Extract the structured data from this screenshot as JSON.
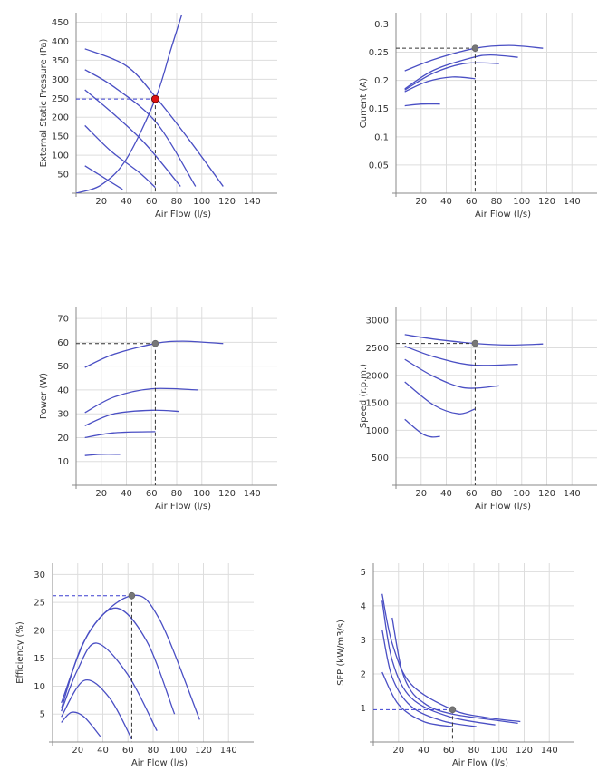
{
  "colors": {
    "curve": "#4a4fc4",
    "system_curve": "#4a4fc4",
    "guide_dark": "#333333",
    "guide_blue": "#3a3fd0",
    "op_point_red": "#dd1111",
    "op_point_grey": "#777777",
    "grid": "#dddddd"
  },
  "chart_data": [
    {
      "id": "pressure",
      "type": "line",
      "xlabel": "Air Flow (l/s)",
      "ylabel": "External Static Pressure (Pa)",
      "xlim": [
        0,
        160
      ],
      "ylim": [
        0,
        475
      ],
      "xticks": [
        20,
        40,
        60,
        80,
        100,
        120,
        140
      ],
      "yticks": [
        50,
        100,
        150,
        200,
        250,
        300,
        350,
        400,
        450
      ],
      "series": [
        {
          "points": [
            [
              7,
              380
            ],
            [
              40,
              335
            ],
            [
              64,
              250
            ],
            [
              90,
              140
            ],
            [
              117,
              18
            ]
          ]
        },
        {
          "points": [
            [
              7,
              325
            ],
            [
              30,
              280
            ],
            [
              64,
              185
            ],
            [
              95,
              18
            ]
          ]
        },
        {
          "points": [
            [
              7,
              272
            ],
            [
              30,
              208
            ],
            [
              55,
              130
            ],
            [
              83,
              18
            ]
          ]
        },
        {
          "points": [
            [
              7,
              178
            ],
            [
              28,
              110
            ],
            [
              50,
              55
            ],
            [
              63,
              15
            ]
          ]
        },
        {
          "points": [
            [
              7,
              72
            ],
            [
              20,
              45
            ],
            [
              37,
              10
            ]
          ]
        }
      ],
      "system_curve": {
        "points": [
          [
            0,
            0
          ],
          [
            20,
            22
          ],
          [
            40,
            90
          ],
          [
            63,
            248
          ],
          [
            75,
            375
          ],
          [
            84,
            470
          ]
        ]
      },
      "operating_point": {
        "x": 63,
        "y": 248,
        "style": "red"
      }
    },
    {
      "id": "current",
      "type": "line",
      "xlabel": "Air Flow (l/s)",
      "ylabel": "Current (A)",
      "xlim": [
        0,
        160
      ],
      "ylim": [
        0,
        0.32
      ],
      "xticks": [
        20,
        40,
        60,
        80,
        100,
        120,
        140
      ],
      "yticks": [
        0.05,
        0.1,
        0.15,
        0.2,
        0.25,
        0.3
      ],
      "ytick_labels": [
        "0.05",
        "0.1",
        "0.15",
        "0.2",
        "0.25",
        "0.3"
      ],
      "series": [
        {
          "points": [
            [
              7,
              0.217
            ],
            [
              30,
              0.237
            ],
            [
              63,
              0.257
            ],
            [
              90,
              0.262
            ],
            [
              117,
              0.257
            ]
          ]
        },
        {
          "points": [
            [
              7,
              0.185
            ],
            [
              30,
              0.218
            ],
            [
              60,
              0.24
            ],
            [
              75,
              0.245
            ],
            [
              97,
              0.241
            ]
          ]
        },
        {
          "points": [
            [
              7,
              0.183
            ],
            [
              30,
              0.213
            ],
            [
              55,
              0.23
            ],
            [
              82,
              0.23
            ]
          ]
        },
        {
          "points": [
            [
              7,
              0.18
            ],
            [
              25,
              0.198
            ],
            [
              45,
              0.206
            ],
            [
              63,
              0.203
            ]
          ]
        },
        {
          "points": [
            [
              7,
              0.155
            ],
            [
              20,
              0.158
            ],
            [
              35,
              0.158
            ]
          ]
        }
      ],
      "operating_point": {
        "x": 63,
        "y": 0.257,
        "style": "grey"
      }
    },
    {
      "id": "power",
      "type": "line",
      "xlabel": "Air Flow (l/s)",
      "ylabel": "Power (W)",
      "xlim": [
        0,
        160
      ],
      "ylim": [
        0,
        75
      ],
      "xticks": [
        20,
        40,
        60,
        80,
        100,
        120,
        140
      ],
      "yticks": [
        10,
        20,
        30,
        40,
        50,
        60,
        70
      ],
      "series": [
        {
          "points": [
            [
              7,
              49.5
            ],
            [
              30,
              55
            ],
            [
              63,
              59.5
            ],
            [
              85,
              60.5
            ],
            [
              117,
              59.5
            ]
          ]
        },
        {
          "points": [
            [
              7,
              30.5
            ],
            [
              30,
              37
            ],
            [
              60,
              40.5
            ],
            [
              97,
              40
            ]
          ]
        },
        {
          "points": [
            [
              7,
              25
            ],
            [
              30,
              30
            ],
            [
              60,
              31.5
            ],
            [
              82,
              31
            ]
          ]
        },
        {
          "points": [
            [
              7,
              20
            ],
            [
              30,
              22
            ],
            [
              63,
              22.5
            ]
          ]
        },
        {
          "points": [
            [
              7,
              12.5
            ],
            [
              20,
              13
            ],
            [
              35,
              13
            ]
          ]
        }
      ],
      "operating_point": {
        "x": 63,
        "y": 59.5,
        "style": "grey"
      }
    },
    {
      "id": "speed",
      "type": "line",
      "xlabel": "Air Flow (l/s)",
      "ylabel": "Speed (r.p.m.)",
      "xlim": [
        0,
        160
      ],
      "ylim": [
        0,
        3250
      ],
      "xticks": [
        20,
        40,
        60,
        80,
        100,
        120,
        140
      ],
      "yticks": [
        500,
        1000,
        1500,
        2000,
        2500,
        3000
      ],
      "series": [
        {
          "points": [
            [
              7,
              2740
            ],
            [
              30,
              2660
            ],
            [
              63,
              2580
            ],
            [
              90,
              2550
            ],
            [
              117,
              2570
            ]
          ]
        },
        {
          "points": [
            [
              7,
              2530
            ],
            [
              30,
              2340
            ],
            [
              60,
              2190
            ],
            [
              97,
              2200
            ]
          ]
        },
        {
          "points": [
            [
              7,
              2290
            ],
            [
              30,
              1980
            ],
            [
              55,
              1770
            ],
            [
              82,
              1810
            ]
          ]
        },
        {
          "points": [
            [
              7,
              1880
            ],
            [
              30,
              1460
            ],
            [
              50,
              1300
            ],
            [
              63,
              1390
            ]
          ]
        },
        {
          "points": [
            [
              7,
              1200
            ],
            [
              20,
              950
            ],
            [
              28,
              880
            ],
            [
              35,
              890
            ]
          ]
        }
      ],
      "operating_point": {
        "x": 63,
        "y": 2580,
        "style": "grey"
      }
    },
    {
      "id": "efficiency",
      "type": "line",
      "xlabel": "Air Flow (l/s)",
      "ylabel": "Efficiency (%)",
      "xlim": [
        0,
        160
      ],
      "ylim": [
        0,
        32
      ],
      "xticks": [
        20,
        40,
        60,
        80,
        100,
        120,
        140
      ],
      "yticks": [
        5,
        10,
        15,
        20,
        25,
        30
      ],
      "series": [
        {
          "points": [
            [
              7,
              7
            ],
            [
              30,
              20
            ],
            [
              63,
              26.2
            ],
            [
              85,
              22
            ],
            [
              117,
              4
            ]
          ]
        },
        {
          "points": [
            [
              7,
              6
            ],
            [
              25,
              18
            ],
            [
              50,
              24
            ],
            [
              75,
              18
            ],
            [
              97,
              5
            ]
          ]
        },
        {
          "points": [
            [
              7,
              5.5
            ],
            [
              20,
              13
            ],
            [
              35,
              17.7
            ],
            [
              60,
              12
            ],
            [
              83,
              2
            ]
          ]
        },
        {
          "points": [
            [
              7,
              4.5
            ],
            [
              25,
              11
            ],
            [
              45,
              8
            ],
            [
              63,
              0.5
            ]
          ]
        },
        {
          "points": [
            [
              7,
              3.5
            ],
            [
              15,
              5.3
            ],
            [
              25,
              4.5
            ],
            [
              38,
              1
            ]
          ]
        }
      ],
      "operating_point": {
        "x": 63,
        "y": 26.2,
        "style": "grey"
      }
    },
    {
      "id": "sfp",
      "type": "line",
      "xlabel": "Air Flow (l/s)",
      "ylabel": "SFP (kW/m3/s)",
      "xlim": [
        0,
        160
      ],
      "ylim": [
        0,
        5.25
      ],
      "xticks": [
        20,
        40,
        60,
        80,
        100,
        120,
        140
      ],
      "yticks": [
        1,
        2,
        3,
        4,
        5
      ],
      "series": [
        {
          "points": [
            [
              7,
              4.35
            ],
            [
              15,
              2.9
            ],
            [
              30,
              1.7
            ],
            [
              63,
              0.95
            ],
            [
              90,
              0.72
            ],
            [
              117,
              0.6
            ]
          ]
        },
        {
          "points": [
            [
              7,
              4.15
            ],
            [
              15,
              2.4
            ],
            [
              30,
              1.3
            ],
            [
              60,
              0.75
            ],
            [
              97,
              0.5
            ]
          ]
        },
        {
          "points": [
            [
              7,
              3.3
            ],
            [
              15,
              1.9
            ],
            [
              30,
              1.05
            ],
            [
              55,
              0.62
            ],
            [
              82,
              0.45
            ]
          ]
        },
        {
          "points": [
            [
              7,
              2.05
            ],
            [
              20,
              1.1
            ],
            [
              40,
              0.6
            ],
            [
              63,
              0.45
            ]
          ]
        },
        {
          "points": [
            [
              15,
              3.65
            ],
            [
              22,
              2.2
            ],
            [
              30,
              1.5
            ],
            [
              40,
              1.15
            ],
            [
              50,
              0.95
            ],
            [
              63,
              0.82
            ],
            [
              80,
              0.72
            ],
            [
              95,
              0.65
            ],
            [
              115,
              0.55
            ]
          ]
        }
      ],
      "operating_point": {
        "x": 63,
        "y": 0.95,
        "style": "grey"
      }
    }
  ]
}
